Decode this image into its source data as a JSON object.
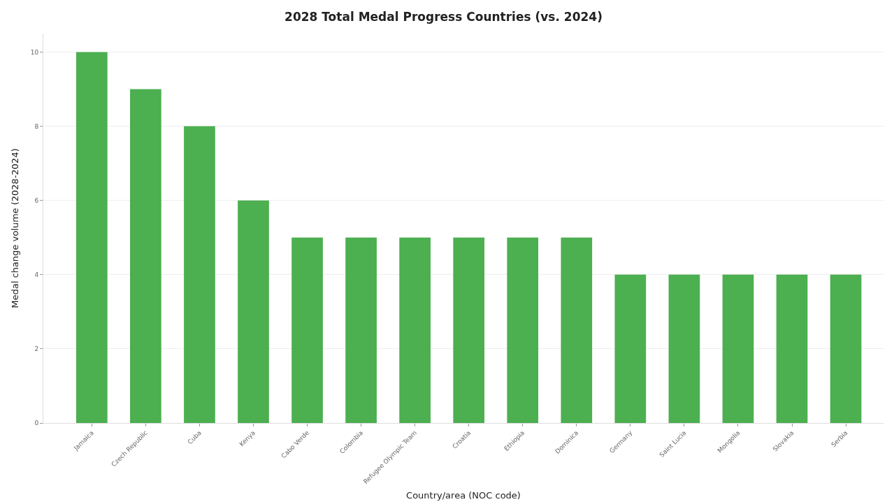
{
  "chart_data": {
    "type": "bar",
    "title": "2028 Total Medal Progress Countries (vs. 2024)",
    "xlabel": "Country/area (NOC code)",
    "ylabel": "Medal change volume (2028-2024)",
    "categories": [
      "Jamaica",
      "Czech Republic",
      "Cuba",
      "Kenya",
      "Cabo Verde",
      "Colombia",
      "Refugee Olympic Team",
      "Croatia",
      "Ethiopia",
      "Dominica",
      "Germany",
      "Saint Lucia",
      "Mongolia",
      "Slovakia",
      "Serbia"
    ],
    "values": [
      10,
      9,
      8,
      6,
      5,
      5,
      5,
      5,
      5,
      5,
      4,
      4,
      4,
      4,
      4
    ],
    "color": "#4caf50",
    "ylim": [
      0,
      10.5
    ],
    "yticks": [
      0,
      2,
      4,
      6,
      8,
      10
    ],
    "grid": "y"
  }
}
